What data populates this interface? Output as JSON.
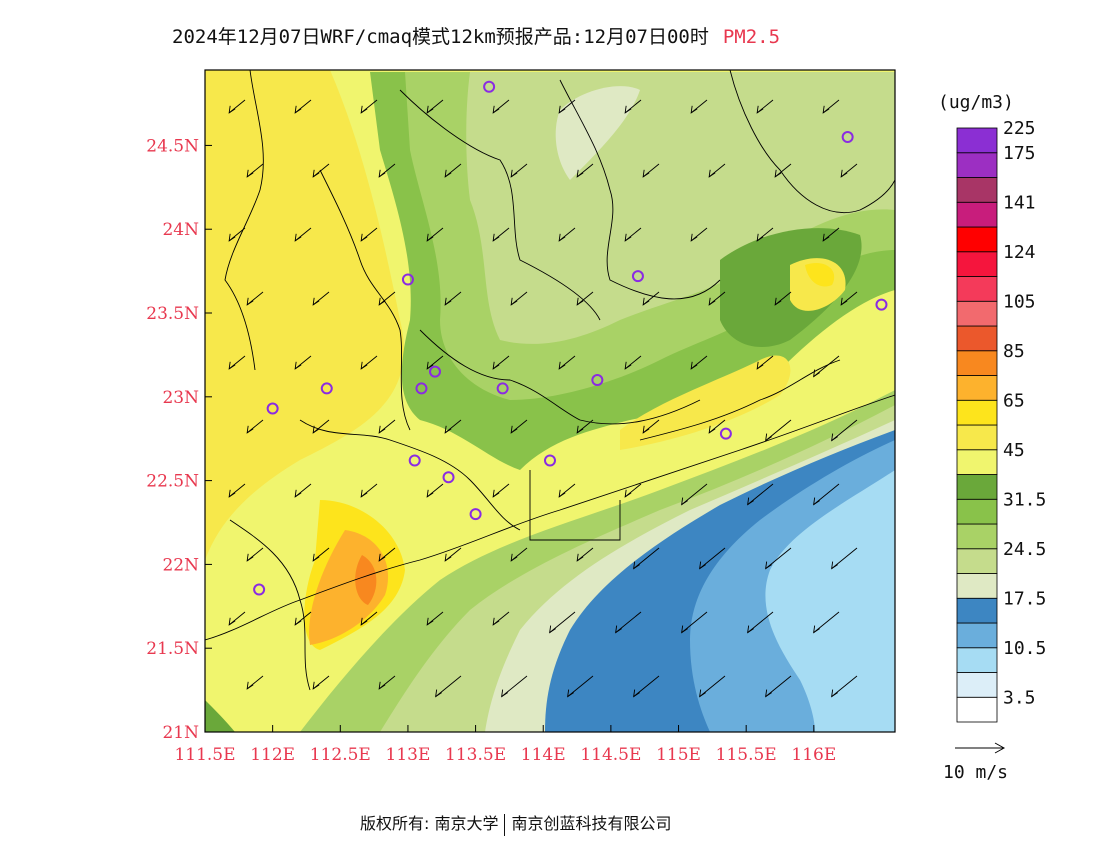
{
  "title": {
    "main": "2024年12月07日WRF/cmaq模式12km预报产品:12月07日00时",
    "variable": "PM2.5"
  },
  "map": {
    "lon_labels": [
      "111.5E",
      "112E",
      "112.5E",
      "113E",
      "113.5E",
      "114E",
      "114.5E",
      "115E",
      "115.5E",
      "116E"
    ],
    "lat_labels": [
      "24.5N",
      "24N",
      "23.5N",
      "23N",
      "22.5N",
      "22N",
      "21.5N",
      "21N"
    ],
    "lon_values": [
      111.5,
      112,
      112.5,
      113,
      113.5,
      114,
      114.5,
      115,
      115.5,
      116
    ],
    "lat_values": [
      24.5,
      24,
      23.5,
      23,
      22.5,
      22,
      21.5,
      21
    ],
    "extent": {
      "lon": [
        111.5,
        116.6
      ],
      "lat": [
        21.0,
        24.95
      ]
    },
    "station_markers": [
      {
        "lon": 113.6,
        "lat": 24.85
      },
      {
        "lon": 116.25,
        "lat": 24.55
      },
      {
        "lon": 113.0,
        "lat": 23.7
      },
      {
        "lon": 114.7,
        "lat": 23.72
      },
      {
        "lon": 116.5,
        "lat": 23.55
      },
      {
        "lon": 113.2,
        "lat": 23.15
      },
      {
        "lon": 113.1,
        "lat": 23.05
      },
      {
        "lon": 113.7,
        "lat": 23.05
      },
      {
        "lon": 114.4,
        "lat": 23.1
      },
      {
        "lon": 112.4,
        "lat": 23.05
      },
      {
        "lon": 112.0,
        "lat": 22.93
      },
      {
        "lon": 115.35,
        "lat": 22.78
      },
      {
        "lon": 113.05,
        "lat": 22.62
      },
      {
        "lon": 113.3,
        "lat": 22.52
      },
      {
        "lon": 114.05,
        "lat": 22.62
      },
      {
        "lon": 113.5,
        "lat": 22.3
      },
      {
        "lon": 111.9,
        "lat": 21.85
      }
    ]
  },
  "colorbar": {
    "unit": "(ug/m3)",
    "colors": [
      "#ffffff",
      "#dceef8",
      "#a6dcf3",
      "#6aaedc",
      "#3d86c2",
      "#dfe9c4",
      "#c5dc8c",
      "#a9d266",
      "#89c24a",
      "#6aa83a",
      "#f0f56e",
      "#f7e84b",
      "#fde41c",
      "#fdb22d",
      "#f8881f",
      "#eb582c",
      "#f26a6e",
      "#f43a5a",
      "#f5153d",
      "#ff0000",
      "#c81d7c",
      "#a83566",
      "#9c2fc2",
      "#8b2fd3"
    ],
    "labels": [
      {
        "after": 1,
        "text": "3.5"
      },
      {
        "after": 3,
        "text": "10.5"
      },
      {
        "after": 5,
        "text": "17.5"
      },
      {
        "after": 7,
        "text": "24.5"
      },
      {
        "after": 9,
        "text": "31.5"
      },
      {
        "after": 11,
        "text": "45"
      },
      {
        "after": 13,
        "text": "65"
      },
      {
        "after": 15,
        "text": "85"
      },
      {
        "after": 17,
        "text": "105"
      },
      {
        "after": 19,
        "text": "124"
      },
      {
        "after": 21,
        "text": "141"
      },
      {
        "after": 23,
        "text": "175"
      },
      {
        "after": 25,
        "text": "225"
      }
    ]
  },
  "wind_legend": {
    "label": "10 m/s"
  },
  "footer": {
    "left": "版权所有: 南京大学",
    "right": "南京创蓝科技有限公司"
  },
  "colors": {
    "axis_label": "#e8384f",
    "marker": "#8a2be2"
  }
}
